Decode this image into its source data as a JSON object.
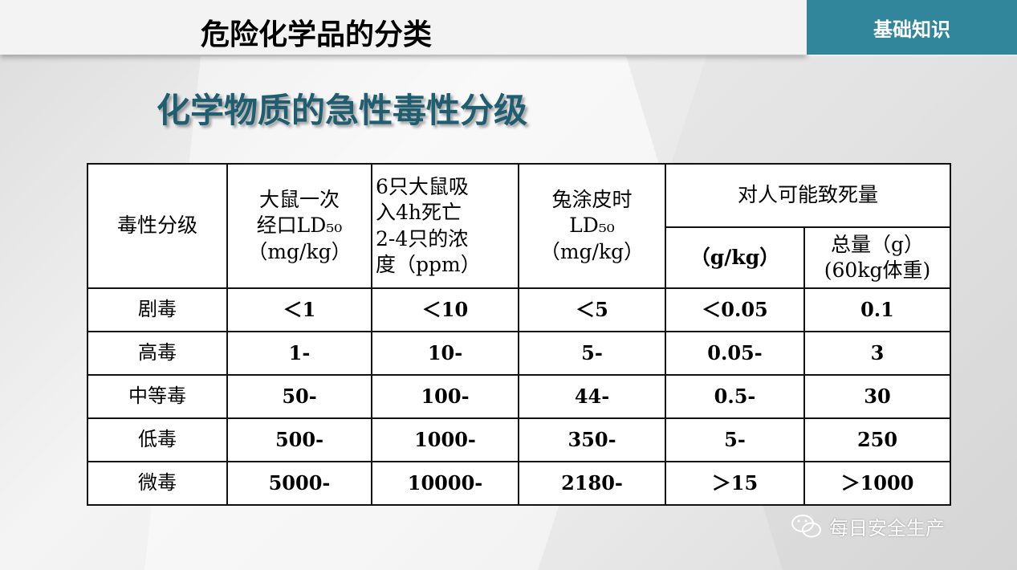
{
  "header": {
    "title": "危险化学品的分类",
    "tag": "基础知识"
  },
  "subtitle": "化学物质的急性毒性分级",
  "table": {
    "headers": {
      "grade": "毒性分级",
      "oral": [
        "大鼠一次",
        "经口LD₅₀",
        "（mg/kg）"
      ],
      "inhale": [
        "6只大鼠吸",
        "入4h死亡",
        "2-4只的浓",
        "度（ppm）"
      ],
      "skin": [
        "兔涂皮时",
        "LD₅₀",
        "（mg/kg）"
      ],
      "human": "对人可能致死量",
      "human_gkg": "（g/kg）",
      "human_total": [
        "总量（g）",
        "(60kg体重)"
      ]
    },
    "rows": [
      [
        "剧毒",
        "＜1",
        "＜10",
        "＜5",
        "＜0.05",
        "0.1"
      ],
      [
        "高毒",
        "1-",
        "10-",
        "5-",
        "0.05-",
        "3"
      ],
      [
        "中等毒",
        "50-",
        "100-",
        "44-",
        "0.5-",
        "30"
      ],
      [
        "低毒",
        "500-",
        "1000-",
        "350-",
        "5-",
        "250"
      ],
      [
        "微毒",
        "5000-",
        "10000-",
        "2180-",
        "＞15",
        "＞1000"
      ]
    ]
  },
  "watermark": {
    "text": "每日安全生产",
    "icon": "wechat-icon"
  },
  "colors": {
    "accent": "#31869b",
    "subtitle": "#1f5d70"
  }
}
